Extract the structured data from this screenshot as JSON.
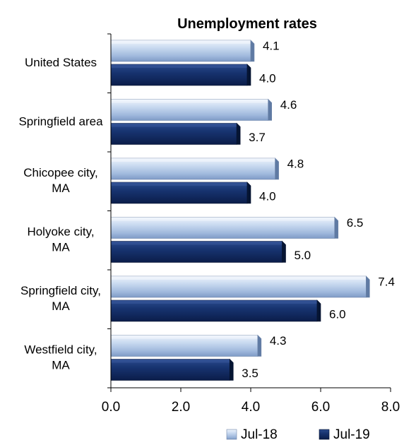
{
  "chart_data": {
    "type": "bar",
    "orientation": "horizontal",
    "title": "Unemployment rates",
    "categories": [
      [
        "United States"
      ],
      [
        "Springfield area"
      ],
      [
        "Chicopee city,",
        "MA"
      ],
      [
        "Holyoke city,",
        "MA"
      ],
      [
        "Springfield city,",
        "MA"
      ],
      [
        "Westfield city,",
        "MA"
      ]
    ],
    "series": [
      {
        "name": "Jul-18",
        "values": [
          4.1,
          4.6,
          4.8,
          6.5,
          7.4,
          4.3
        ],
        "labels": [
          "4.1",
          "4.6",
          "4.8",
          "6.5",
          "7.4",
          "4.3"
        ],
        "color": "#b7cdea"
      },
      {
        "name": "Jul-19",
        "values": [
          4.0,
          3.7,
          4.0,
          5.0,
          6.0,
          3.5
        ],
        "labels": [
          "4.0",
          "3.7",
          "4.0",
          "5.0",
          "6.0",
          "3.5"
        ],
        "color": "#16306b"
      }
    ],
    "xlim": [
      0,
      8
    ],
    "xticks": [
      "0.0",
      "2.0",
      "4.0",
      "6.0",
      "8.0"
    ],
    "xtick_values": [
      0,
      2,
      4,
      6,
      8
    ],
    "grid": false,
    "legend_position": "bottom"
  }
}
